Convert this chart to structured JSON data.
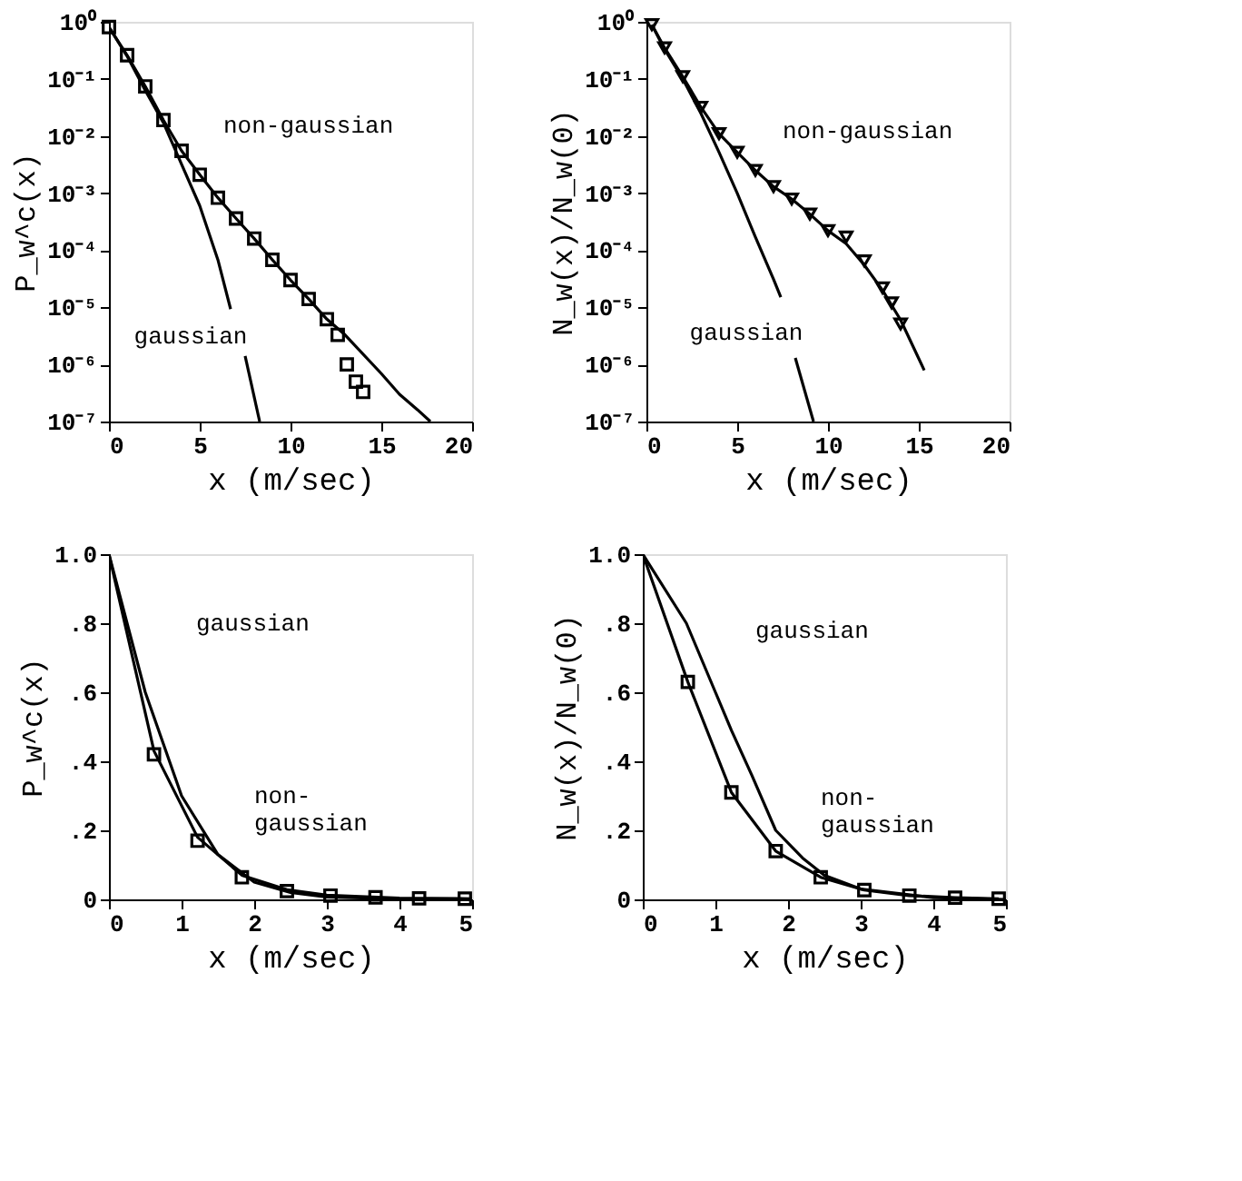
{
  "chart_data": [
    {
      "type": "line",
      "xlabel": "x (m/sec)",
      "ylabel": "P_w^c(x)",
      "log": true,
      "grid": false,
      "xlim": [
        0,
        20
      ],
      "xticks": [
        0,
        5,
        10,
        15,
        20
      ],
      "ylim": [
        1e-07,
        1
      ],
      "yticks": [
        {
          "value": 1,
          "label": "10⁰"
        },
        {
          "value": 0.1,
          "label": "10⁻¹"
        },
        {
          "value": 0.01,
          "label": "10⁻²"
        },
        {
          "value": 0.001,
          "label": "10⁻³"
        },
        {
          "value": 0.0001,
          "label": "10⁻⁴"
        },
        {
          "value": 1e-05,
          "label": "10⁻⁵"
        },
        {
          "value": 1e-06,
          "label": "10⁻⁶"
        },
        {
          "value": 1e-07,
          "label": "10⁻⁷"
        }
      ],
      "series": [
        {
          "color": "#000000",
          "x": [
            0,
            1,
            2,
            3,
            4,
            5,
            6,
            6.7,
            7.1,
            7.5,
            8.3
          ],
          "values": [
            0.81,
            0.25,
            0.063,
            0.017,
            0.0032,
            0.0006,
            6.8e-05,
            9.3e-06,
            null,
            1.4e-06,
            1e-07
          ]
        },
        {
          "color": "#000000",
          "x": [
            0,
            1,
            2,
            3,
            4,
            5,
            6,
            7,
            8,
            9,
            10,
            11,
            12,
            13,
            15,
            16,
            17,
            17.7
          ],
          "values": [
            0.81,
            0.26,
            0.074,
            0.019,
            0.0055,
            0.0021,
            0.00083,
            0.00036,
            0.00016,
            6.8e-05,
            3e-05,
            1.4e-05,
            6.2e-06,
            3.3e-06,
            6.9e-07,
            3e-07,
            1.6e-07,
            1e-07
          ]
        },
        {
          "type": "scatter",
          "marker": "square",
          "color": "#000000",
          "x": [
            0,
            1,
            2,
            3,
            4,
            5,
            6,
            7,
            8,
            9,
            10,
            11,
            12,
            12.6,
            13.1,
            13.6,
            14
          ],
          "values": [
            0.81,
            0.26,
            0.074,
            0.019,
            0.0055,
            0.0021,
            0.00083,
            0.00036,
            0.00016,
            6.8e-05,
            3e-05,
            1.4e-05,
            6.2e-06,
            3.3e-06,
            1e-06,
            5e-07,
            3.3e-07
          ]
        }
      ],
      "annotations": [
        "non-gaussian",
        "gaussian"
      ]
    },
    {
      "type": "line",
      "xlabel": "x (m/sec)",
      "ylabel": "N_w(x)/N_w(0)",
      "log": true,
      "grid": false,
      "xlim": [
        0,
        20
      ],
      "xticks": [
        0,
        5,
        10,
        15,
        20
      ],
      "ylim": [
        1e-07,
        1
      ],
      "yticks": [
        {
          "value": 1,
          "label": "10⁰"
        },
        {
          "value": 0.1,
          "label": "10⁻¹"
        },
        {
          "value": 0.01,
          "label": "10⁻²"
        },
        {
          "value": 0.001,
          "label": "10⁻³"
        },
        {
          "value": 0.0001,
          "label": "10⁻⁴"
        },
        {
          "value": 1e-05,
          "label": "10⁻⁵"
        },
        {
          "value": 1e-06,
          "label": "10⁻⁶"
        },
        {
          "value": 1e-07,
          "label": "10⁻⁷"
        }
      ],
      "series": [
        {
          "color": "#000000",
          "x": [
            0.3,
            1,
            2,
            3,
            4,
            5,
            6,
            7,
            7.4,
            7.8,
            8.2,
            9.2
          ],
          "values": [
            0.89,
            0.33,
            0.1,
            0.025,
            0.0052,
            0.001,
            0.00017,
            3.1e-05,
            1.5e-05,
            null,
            1.3e-06,
            1e-07
          ]
        },
        {
          "color": "#000000",
          "x": [
            0.3,
            1,
            2,
            3,
            4,
            5,
            6,
            7,
            8,
            9,
            10,
            11,
            12,
            13,
            14,
            15.3
          ],
          "values": [
            0.89,
            0.35,
            0.11,
            0.032,
            0.011,
            0.0052,
            0.0025,
            0.0013,
            0.00079,
            0.00043,
            0.00022,
            0.00013,
            5.5e-05,
            2e-05,
            6e-06,
            7.9e-07
          ]
        },
        {
          "type": "scatter",
          "marker": "triangle-down",
          "color": "#000000",
          "x": [
            0.3,
            1,
            2,
            3,
            4,
            5,
            6,
            7,
            8,
            9,
            10,
            11,
            12,
            13,
            13.5,
            14
          ],
          "values": [
            0.89,
            0.35,
            0.11,
            0.032,
            0.011,
            0.0052,
            0.0025,
            0.0013,
            0.00079,
            0.00043,
            0.00022,
            0.00017,
            6.5e-05,
            2.2e-05,
            1.2e-05,
            5.1e-06
          ]
        }
      ],
      "annotations": [
        "non-gaussian",
        "gaussian"
      ]
    },
    {
      "type": "line",
      "xlabel": "x (m/sec)",
      "ylabel": "P_w^c(x)",
      "grid": false,
      "xlim": [
        0,
        5
      ],
      "xticks": [
        0,
        1,
        2,
        3,
        4,
        5
      ],
      "ylim": [
        0,
        1
      ],
      "yticks": [
        {
          "value": 0,
          "label": "0"
        },
        {
          "value": 0.2,
          "label": ".2"
        },
        {
          "value": 0.4,
          "label": ".4"
        },
        {
          "value": 0.6,
          "label": ".6"
        },
        {
          "value": 0.8,
          "label": ".8"
        },
        {
          "value": 1,
          "label": "1.0"
        }
      ],
      "series": [
        {
          "color": "#000000",
          "x": [
            0,
            0.5,
            1,
            1.5,
            2,
            2.5,
            3,
            4
          ],
          "values": [
            1,
            0.6,
            0.3,
            0.13,
            0.05,
            0.02,
            0.007,
            0.001
          ]
        },
        {
          "color": "#000000",
          "x": [
            0,
            0.62,
            1.22,
            1.83,
            2.45,
            3,
            4,
            5
          ],
          "values": [
            1,
            0.43,
            0.18,
            0.07,
            0.028,
            0.012,
            0.004,
            0.002
          ]
        },
        {
          "type": "scatter",
          "marker": "square",
          "color": "#000000",
          "x": [
            0.62,
            1.22,
            1.83,
            2.45,
            3.05,
            3.67,
            4.27,
            4.9
          ],
          "values": [
            0.42,
            0.17,
            0.064,
            0.024,
            0.011,
            0.006,
            0.003,
            0.002
          ]
        }
      ],
      "annotations": [
        "gaussian",
        "non-\ngaussian"
      ]
    },
    {
      "type": "line",
      "xlabel": "x (m/sec)",
      "ylabel": "N_w(x)/N_w(0)",
      "grid": false,
      "xlim": [
        0,
        5
      ],
      "xticks": [
        0,
        1,
        2,
        3,
        4,
        5
      ],
      "ylim": [
        0,
        1
      ],
      "yticks": [
        {
          "value": 0,
          "label": "0"
        },
        {
          "value": 0.2,
          "label": ".2"
        },
        {
          "value": 0.4,
          "label": ".4"
        },
        {
          "value": 0.6,
          "label": ".6"
        },
        {
          "value": 0.8,
          "label": ".8"
        },
        {
          "value": 1,
          "label": "1.0"
        }
      ],
      "series": [
        {
          "color": "#000000",
          "x": [
            0,
            0.6,
            1,
            1.22,
            1.5,
            1.83,
            2.2,
            2.5,
            3,
            4,
            5
          ],
          "values": [
            1,
            0.8,
            0.6,
            0.49,
            0.36,
            0.2,
            0.12,
            0.07,
            0.03,
            0.005,
            0
          ]
        },
        {
          "color": "#000000",
          "x": [
            0,
            0.62,
            1.22,
            1.83,
            2.45,
            3.05,
            3.67,
            4.3,
            4.9
          ],
          "values": [
            1,
            0.63,
            0.31,
            0.14,
            0.064,
            0.027,
            0.011,
            0.005,
            0.002
          ]
        },
        {
          "type": "scatter",
          "marker": "square",
          "color": "#000000",
          "x": [
            0.62,
            1.22,
            1.83,
            2.45,
            3.05,
            3.67,
            4.3,
            4.9
          ],
          "values": [
            0.63,
            0.31,
            0.14,
            0.064,
            0.027,
            0.011,
            0.005,
            0.002
          ]
        }
      ],
      "annotations": [
        "gaussian",
        "non-\ngaussian"
      ]
    }
  ]
}
